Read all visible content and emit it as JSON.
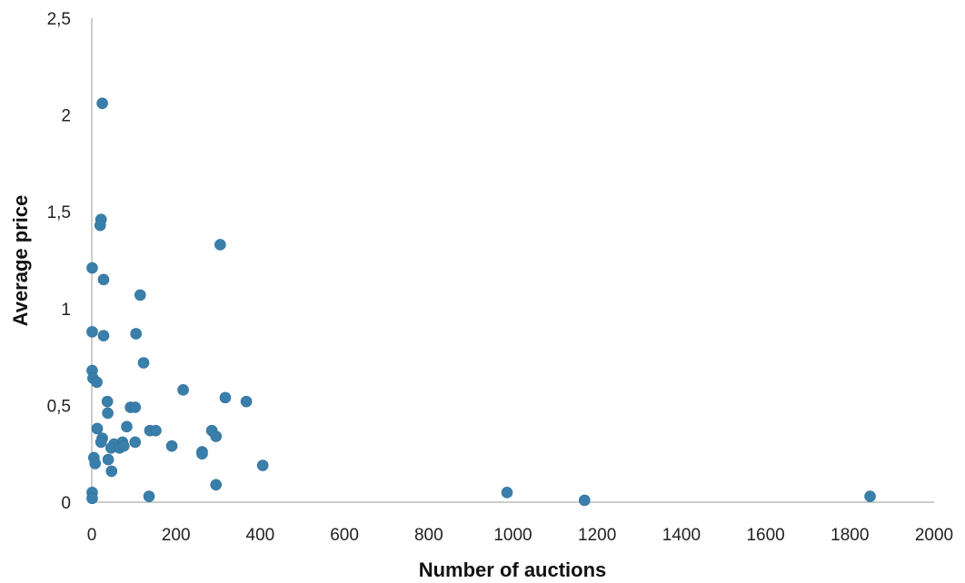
{
  "chart_data": {
    "type": "scatter",
    "title": "",
    "xlabel": "Number of auctions",
    "ylabel": "Average price",
    "xlim": [
      0,
      2000
    ],
    "ylim": [
      0,
      2.5
    ],
    "x_ticks": [
      "0",
      "200",
      "400",
      "600",
      "800",
      "1000",
      "1200",
      "1400",
      "1600",
      "1800",
      "2000"
    ],
    "y_ticks": [
      "0",
      "0,5",
      "1",
      "1,5",
      "2",
      "2,5"
    ],
    "grid": false,
    "legend": "none",
    "point_color": "#3a7fab",
    "series": [
      {
        "name": "",
        "points": [
          [
            25,
            2.06
          ],
          [
            22,
            1.46
          ],
          [
            20,
            1.43
          ],
          [
            305,
            1.33
          ],
          [
            1,
            1.21
          ],
          [
            28,
            1.15
          ],
          [
            115,
            1.07
          ],
          [
            1,
            0.88
          ],
          [
            28,
            0.86
          ],
          [
            105,
            0.87
          ],
          [
            123,
            0.72
          ],
          [
            1,
            0.68
          ],
          [
            3,
            0.64
          ],
          [
            12,
            0.62
          ],
          [
            217,
            0.58
          ],
          [
            317,
            0.54
          ],
          [
            37,
            0.52
          ],
          [
            367,
            0.52
          ],
          [
            92,
            0.49
          ],
          [
            103,
            0.49
          ],
          [
            38,
            0.46
          ],
          [
            83,
            0.39
          ],
          [
            13,
            0.38
          ],
          [
            138,
            0.37
          ],
          [
            152,
            0.37
          ],
          [
            285,
            0.37
          ],
          [
            295,
            0.34
          ],
          [
            25,
            0.33
          ],
          [
            22,
            0.31
          ],
          [
            73,
            0.31
          ],
          [
            103,
            0.31
          ],
          [
            53,
            0.3
          ],
          [
            46,
            0.28
          ],
          [
            66,
            0.28
          ],
          [
            76,
            0.29
          ],
          [
            190,
            0.29
          ],
          [
            262,
            0.26
          ],
          [
            262,
            0.25
          ],
          [
            5,
            0.23
          ],
          [
            39,
            0.22
          ],
          [
            8,
            0.2
          ],
          [
            406,
            0.19
          ],
          [
            47,
            0.16
          ],
          [
            295,
            0.09
          ],
          [
            1,
            0.05
          ],
          [
            136,
            0.03
          ],
          [
            986,
            0.05
          ],
          [
            1170,
            0.01
          ],
          [
            1848,
            0.03
          ],
          [
            1,
            0.02
          ]
        ]
      }
    ]
  }
}
